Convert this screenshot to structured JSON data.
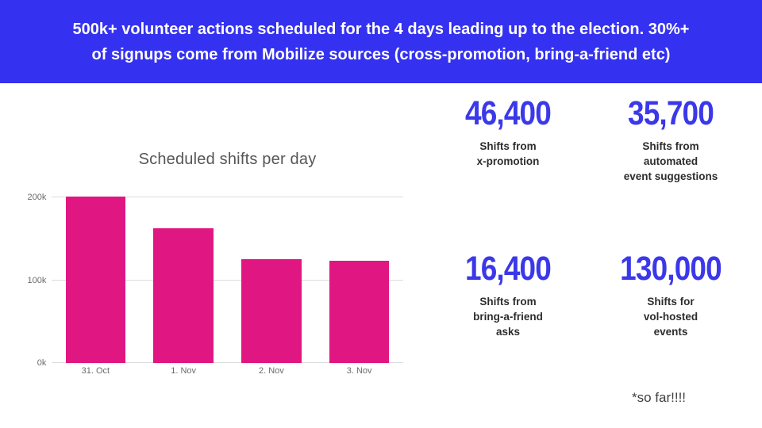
{
  "banner": {
    "headline": "500k+ volunteer actions scheduled for the 4 days leading up to the election. 30%+ of signups come from Mobilize sources (cross-promotion, bring-a-friend etc)",
    "background_color": "#3431f0",
    "text_color": "#ffffff"
  },
  "chart_data": {
    "type": "bar",
    "title": "Scheduled shifts per day",
    "categories": [
      "31. Oct",
      "1. Nov",
      "2. Nov",
      "3. Nov"
    ],
    "values": [
      201000,
      163000,
      125000,
      123000
    ],
    "yticks": [
      {
        "value": 0,
        "label": "0k"
      },
      {
        "value": 100000,
        "label": "100k"
      },
      {
        "value": 200000,
        "label": "200k"
      }
    ],
    "ylim": [
      0,
      223000
    ],
    "xlabel": "",
    "ylabel": "",
    "grid": true,
    "legend": false,
    "bar_color": "#e01783"
  },
  "stats": [
    {
      "value": "46,400",
      "label": "Shifts from\nx-promotion"
    },
    {
      "value": "35,700",
      "label": "Shifts from\nautomated\nevent suggestions"
    },
    {
      "value": "16,400",
      "label": "Shifts from\nbring-a-friend\nasks"
    },
    {
      "value": "130,000",
      "label": "Shifts for\nvol-hosted\nevents"
    }
  ],
  "footnote": "*so far!!!!",
  "colors": {
    "brand_blue": "#3431f0",
    "stat_blue": "#3b38ea",
    "bar_pink": "#e01783",
    "title_gray": "#565659",
    "axis_gray": "#6b6b6b"
  }
}
